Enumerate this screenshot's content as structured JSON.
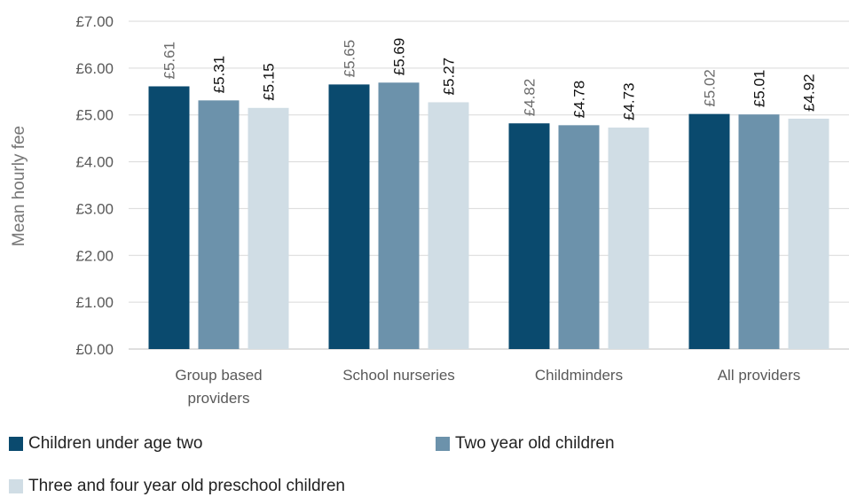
{
  "chart_data": {
    "type": "bar",
    "title": "",
    "xlabel": "",
    "ylabel": "Mean hourly fee",
    "ylim": [
      0,
      7
    ],
    "yticks": [
      "£0.00",
      "£1.00",
      "£2.00",
      "£3.00",
      "£4.00",
      "£5.00",
      "£6.00",
      "£7.00"
    ],
    "grid": true,
    "legend_position": "bottom",
    "categories": [
      [
        "Group based",
        "providers"
      ],
      [
        "School nurseries"
      ],
      [
        "Childminders"
      ],
      [
        "All providers"
      ]
    ],
    "series": [
      {
        "name": "Children under age two",
        "color": "#0a4a6e",
        "values": [
          5.61,
          5.65,
          4.82,
          5.02
        ],
        "labels": [
          "£5.61",
          "£5.65",
          "£4.82",
          "£5.02"
        ],
        "label_color": "#6b6b6b"
      },
      {
        "name": "Two year old children",
        "color": "#6c92ab",
        "values": [
          5.31,
          5.69,
          4.78,
          5.01
        ],
        "labels": [
          "£5.31",
          "£5.69",
          "£4.78",
          "£5.01"
        ],
        "label_color": "#111111"
      },
      {
        "name": "Three and four year old preschool children",
        "color": "#d0dde5",
        "values": [
          5.15,
          5.27,
          4.73,
          4.92
        ],
        "labels": [
          "£5.15",
          "£5.27",
          "£4.73",
          "£4.92"
        ],
        "label_color": "#111111"
      }
    ]
  }
}
